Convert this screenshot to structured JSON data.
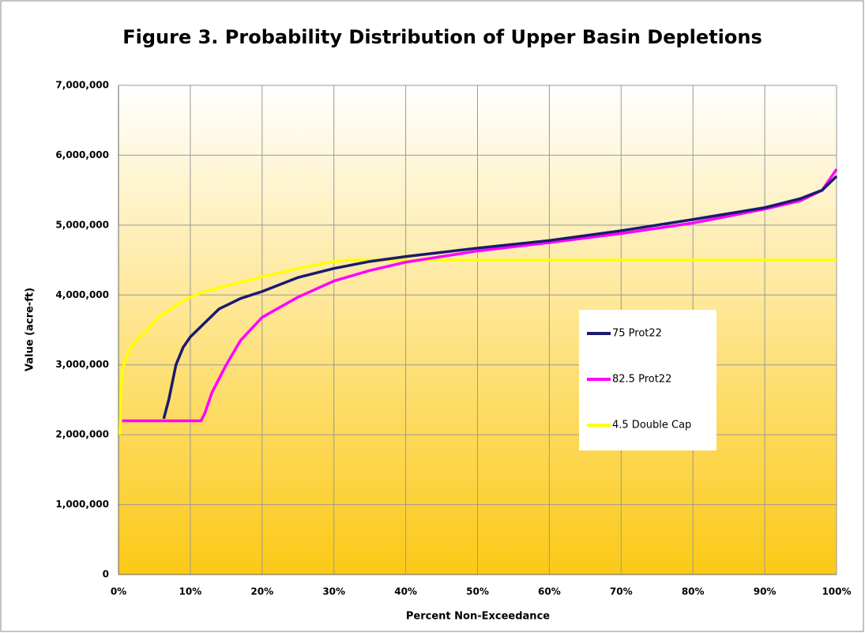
{
  "chart_data": {
    "type": "line",
    "title": "Figure 3. Probability Distribution of Upper Basin Depletions",
    "x_label": "Percent Non-Exceedance",
    "y_label": "Value (acre-ft)",
    "xlim": [
      0,
      100
    ],
    "xticks": [
      {
        "value": 0,
        "label": "0%"
      },
      {
        "value": 10,
        "label": "10%"
      },
      {
        "value": 20,
        "label": "20%"
      },
      {
        "value": 30,
        "label": "30%"
      },
      {
        "value": 40,
        "label": "40%"
      },
      {
        "value": 50,
        "label": "50%"
      },
      {
        "value": 60,
        "label": "60%"
      },
      {
        "value": 70,
        "label": "70%"
      },
      {
        "value": 80,
        "label": "80%"
      },
      {
        "value": 90,
        "label": "90%"
      },
      {
        "value": 100,
        "label": "100%"
      }
    ],
    "ylim": [
      0,
      7000000
    ],
    "yticks": [
      0,
      {
        "value": 1000000,
        "label": "1,000,000"
      },
      {
        "value": 2000000,
        "label": "2,000,000"
      },
      {
        "value": 3000000,
        "label": "3,000,000"
      },
      {
        "value": 4000000,
        "label": "4,000,000"
      },
      {
        "value": 5000000,
        "label": "5,000,000"
      },
      {
        "value": 6000000,
        "label": "6,000,000"
      },
      {
        "value": 7000000,
        "label": "7,000,000"
      }
    ],
    "grid": true,
    "legend": "center-right",
    "series": [
      {
        "name": "75 Prot22",
        "color": "#1a1a6e",
        "x": [
          6.3,
          7,
          8,
          9,
          10,
          12,
          14,
          17,
          20,
          25,
          30,
          35,
          40,
          50,
          60,
          70,
          80,
          90,
          95,
          98,
          100
        ],
        "values": [
          2230000,
          2500000,
          3000000,
          3250000,
          3400000,
          3600000,
          3800000,
          3950000,
          4050000,
          4250000,
          4380000,
          4480000,
          4550000,
          4670000,
          4780000,
          4920000,
          5080000,
          5250000,
          5380000,
          5500000,
          5700000
        ]
      },
      {
        "name": "82.5 Prot22",
        "color": "#ff00ff",
        "x": [
          0.5,
          11.5,
          12,
          13,
          15,
          17,
          20,
          25,
          30,
          35,
          40,
          45,
          50,
          60,
          70,
          80,
          90,
          95,
          98,
          100
        ],
        "values": [
          2200000,
          2200000,
          2300000,
          2600000,
          3000000,
          3350000,
          3680000,
          3970000,
          4200000,
          4350000,
          4470000,
          4550000,
          4630000,
          4750000,
          4880000,
          5030000,
          5230000,
          5350000,
          5500000,
          5800000
        ]
      },
      {
        "name": "4.5 Double Cap",
        "color": "#ffff00",
        "x": [
          0.2,
          0.3,
          0.5,
          1,
          2,
          4,
          6,
          8,
          10,
          12,
          15,
          20,
          25,
          30,
          32,
          100
        ],
        "values": [
          2000000,
          2500000,
          2900000,
          3100000,
          3300000,
          3500000,
          3720000,
          3850000,
          3970000,
          4050000,
          4130000,
          4260000,
          4380000,
          4480000,
          4500000,
          4500000
        ]
      }
    ]
  }
}
